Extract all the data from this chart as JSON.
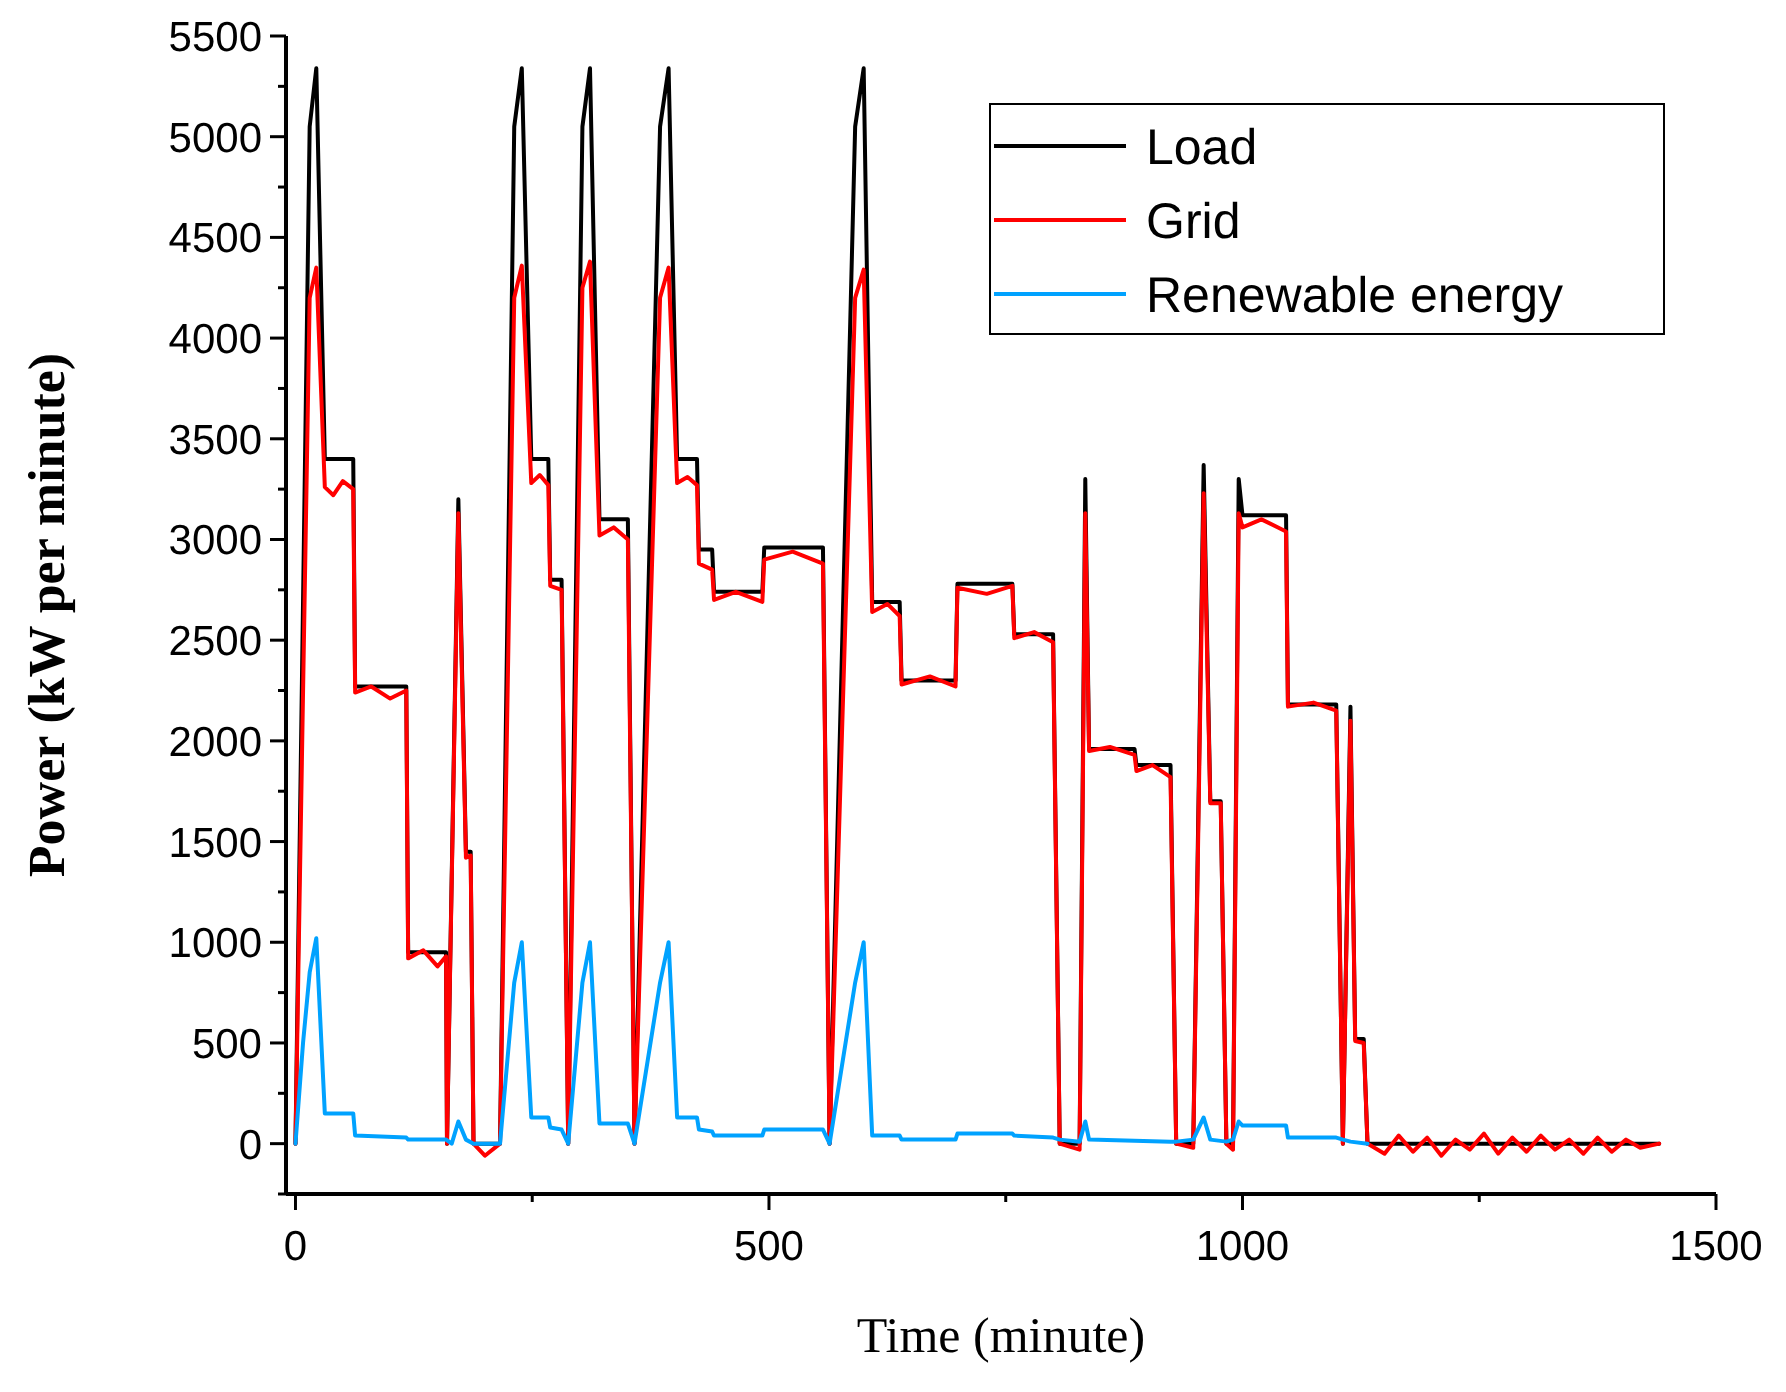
{
  "chart_data": {
    "type": "line",
    "xlabel": "Time (minute)",
    "ylabel": "Power (kW per minute)",
    "xlim": [
      -10,
      1500
    ],
    "ylim": [
      -250,
      5500
    ],
    "xticks": [
      0,
      {
        "value": 250,
        "label": null
      },
      500,
      {
        "value": 750,
        "label": null
      },
      1000,
      {
        "value": 1250,
        "label": null
      },
      1500
    ],
    "yticks": [
      {
        "value": -250,
        "label": null
      },
      0,
      {
        "value": 250,
        "label": null
      },
      500,
      {
        "value": 750,
        "label": null
      },
      1000,
      {
        "value": 1250,
        "label": null
      },
      1500,
      {
        "value": 1750,
        "label": null
      },
      2000,
      {
        "value": 2250,
        "label": null
      },
      2500,
      {
        "value": 2750,
        "label": null
      },
      3000,
      {
        "value": 3250,
        "label": null
      },
      3500,
      {
        "value": 3750,
        "label": null
      },
      4000,
      {
        "value": 4250,
        "label": null
      },
      4500,
      {
        "value": 4750,
        "label": null
      },
      5000,
      {
        "value": 5250,
        "label": null
      },
      5500
    ],
    "grid": false,
    "legend": "top right",
    "line_style": "solid",
    "marker": "none",
    "series": [
      {
        "name": "Load",
        "color": "#000000",
        "x": [
          0,
          15,
          22,
          31,
          61,
          63,
          117,
          119,
          159,
          160,
          172,
          180,
          185,
          188,
          216,
          231,
          239,
          249,
          267,
          269,
          281,
          288,
          303,
          311,
          321,
          351,
          358,
          385,
          394,
          403,
          424,
          426,
          440,
          442,
          493,
          495,
          557,
          564,
          591,
          600,
          609,
          638,
          640,
          697,
          699,
          757,
          759,
          800,
          807,
          828,
          834,
          838,
          886,
          888,
          924,
          930,
          948,
          959,
          966,
          977,
          983,
          990,
          996,
          1000,
          1046,
          1048,
          1099,
          1106,
          1114,
          1119,
          1128,
          1132,
          1440
        ],
        "values": [
          0,
          5050,
          5340,
          3400,
          3400,
          2270,
          2270,
          950,
          950,
          0,
          3200,
          1450,
          1450,
          0,
          0,
          5050,
          5340,
          3400,
          3400,
          2800,
          2800,
          0,
          5050,
          5340,
          3100,
          3100,
          0,
          5050,
          5340,
          3400,
          3400,
          2950,
          2950,
          2740,
          2740,
          2960,
          2960,
          0,
          5050,
          5340,
          2690,
          2690,
          2300,
          2300,
          2780,
          2780,
          2530,
          2530,
          0,
          0,
          3300,
          1960,
          1960,
          1880,
          1880,
          0,
          0,
          3370,
          1700,
          1700,
          0,
          0,
          3300,
          3120,
          3120,
          2180,
          2180,
          0,
          2170,
          520,
          520,
          0,
          0
        ]
      },
      {
        "name": "Grid",
        "color": "#ff0000",
        "x": [
          0,
          15,
          22,
          31,
          40,
          50,
          61,
          63,
          80,
          100,
          117,
          119,
          135,
          150,
          159,
          160,
          172,
          180,
          185,
          188,
          200,
          216,
          231,
          239,
          249,
          258,
          267,
          269,
          281,
          288,
          303,
          311,
          321,
          336,
          351,
          358,
          385,
          394,
          403,
          414,
          424,
          426,
          440,
          442,
          465,
          493,
          495,
          525,
          557,
          564,
          591,
          600,
          609,
          625,
          638,
          640,
          670,
          697,
          699,
          730,
          757,
          759,
          780,
          800,
          807,
          828,
          834,
          838,
          860,
          886,
          888,
          905,
          924,
          930,
          948,
          959,
          966,
          977,
          983,
          990,
          996,
          1000,
          1020,
          1046,
          1048,
          1075,
          1099,
          1106,
          1114,
          1119,
          1128,
          1132,
          1150,
          1165,
          1180,
          1195,
          1210,
          1225,
          1240,
          1255,
          1270,
          1285,
          1300,
          1315,
          1330,
          1345,
          1360,
          1375,
          1390,
          1405,
          1420,
          1440
        ],
        "values": [
          0,
          4200,
          4350,
          3260,
          3220,
          3290,
          3250,
          2240,
          2270,
          2210,
          2250,
          920,
          960,
          880,
          930,
          0,
          3130,
          1420,
          1430,
          0,
          -60,
          0,
          4200,
          4360,
          3280,
          3320,
          3270,
          2770,
          2750,
          0,
          4250,
          4380,
          3020,
          3060,
          3000,
          0,
          4200,
          4350,
          3280,
          3310,
          3270,
          2880,
          2850,
          2700,
          2740,
          2690,
          2900,
          2940,
          2880,
          0,
          4200,
          4340,
          2640,
          2680,
          2620,
          2280,
          2320,
          2270,
          2760,
          2730,
          2770,
          2510,
          2540,
          2490,
          0,
          -30,
          3130,
          1950,
          1970,
          1930,
          1850,
          1880,
          1820,
          0,
          -20,
          3230,
          1690,
          1690,
          0,
          -30,
          3130,
          3060,
          3100,
          3040,
          2170,
          2190,
          2150,
          0,
          2100,
          510,
          500,
          0,
          -50,
          40,
          -40,
          30,
          -60,
          20,
          -30,
          50,
          -50,
          30,
          -40,
          40,
          -30,
          20,
          -50,
          30,
          -40,
          20,
          -20,
          0
        ]
      },
      {
        "name": "Renewable energy",
        "color": "#00a2ff",
        "x": [
          0,
          8,
          15,
          22,
          31,
          61,
          63,
          117,
          119,
          159,
          165,
          172,
          180,
          188,
          216,
          231,
          239,
          249,
          267,
          269,
          281,
          288,
          303,
          311,
          321,
          351,
          358,
          385,
          394,
          403,
          424,
          426,
          440,
          442,
          493,
          495,
          557,
          564,
          591,
          600,
          609,
          638,
          640,
          697,
          699,
          757,
          759,
          800,
          807,
          828,
          834,
          838,
          924,
          930,
          948,
          959,
          966,
          983,
          990,
          996,
          1000,
          1046,
          1048,
          1099,
          1106,
          1114,
          1132
        ],
        "values": [
          0,
          500,
          850,
          1020,
          150,
          150,
          40,
          30,
          20,
          20,
          0,
          110,
          20,
          0,
          0,
          800,
          1000,
          130,
          130,
          80,
          70,
          0,
          800,
          1000,
          100,
          100,
          0,
          800,
          1000,
          130,
          130,
          70,
          60,
          40,
          40,
          70,
          70,
          0,
          800,
          1000,
          40,
          40,
          20,
          20,
          50,
          50,
          40,
          30,
          20,
          10,
          110,
          20,
          10,
          10,
          20,
          130,
          20,
          10,
          20,
          110,
          90,
          90,
          30,
          30,
          20,
          10,
          0
        ]
      }
    ]
  }
}
